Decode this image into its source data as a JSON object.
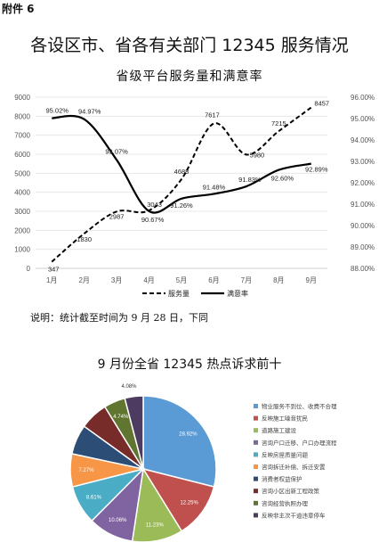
{
  "attachment_label": "附件 6",
  "main_title": "各设区市、省各有关部门 12345 服务情况",
  "note": "说明：统计截至时间为 9 月 28 日，下同",
  "chart_data": [
    {
      "type": "line",
      "title": "省级平台服务量和满意率",
      "categories": [
        "1月",
        "2月",
        "3月",
        "4月",
        "5月",
        "6月",
        "7月",
        "8月",
        "9月"
      ],
      "y_left": {
        "ticks": [
          "0",
          "1000",
          "2000",
          "3000",
          "4000",
          "5000",
          "6000",
          "7000",
          "8000",
          "9000"
        ],
        "lim": [
          0,
          9000
        ]
      },
      "y_right": {
        "ticks": [
          "88.00%",
          "89.00%",
          "90.00%",
          "91.00%",
          "92.00%",
          "93.00%",
          "94.00%",
          "95.00%",
          "96.00%"
        ],
        "lim": [
          88,
          96
        ]
      },
      "series": [
        {
          "name": "服务量",
          "axis": "left",
          "dashed": true,
          "color": "#000000",
          "values": [
            347,
            1830,
            2987,
            3043,
            4688,
            7617,
            5980,
            7215,
            8457
          ],
          "labels": [
            "347",
            "1830",
            "2987",
            "3043",
            "4688",
            "7617",
            "5980",
            "7215",
            "8457"
          ]
        },
        {
          "name": "满意率",
          "axis": "right",
          "dashed": false,
          "color": "#000000",
          "values": [
            95.02,
            94.97,
            93.07,
            90.67,
            91.26,
            91.48,
            91.83,
            92.6,
            92.89
          ],
          "labels": [
            "95.02%",
            "94.97%",
            "93.07%",
            "90.67%",
            "91.26%",
            "91.48%",
            "91.83%",
            "92.60%",
            "92.89%"
          ]
        }
      ],
      "legend_position": "bottom",
      "grid": true
    },
    {
      "type": "pie",
      "title": "9 月份全省 12345 热点诉求前十",
      "slices": [
        {
          "label": "物业服务不到位、收费不合理",
          "value": 28.92,
          "text": "28.92%",
          "color": "#5b9bd5"
        },
        {
          "label": "反映施工噪音扰民",
          "value": 12.25,
          "text": "12.25%",
          "color": "#c0504d"
        },
        {
          "label": "道路施工建设",
          "value": 11.23,
          "text": "11.23%",
          "color": "#9bbb59"
        },
        {
          "label": "咨询户口迁移、户口办理流程",
          "value": 10.06,
          "text": "10.06%",
          "color": "#8064a2"
        },
        {
          "label": "反映房屋质量问题",
          "value": 8.61,
          "text": "8.61%",
          "color": "#4bacc6"
        },
        {
          "label": "咨询拆迁补偿、拆迁安置",
          "value": 7.27,
          "text": "7.27%",
          "color": "#f79646"
        },
        {
          "label": "消费者权益保护",
          "value": 6.6,
          "text": "",
          "color": "#2c4d75"
        },
        {
          "label": "咨询小区出新工程政策",
          "value": 6.24,
          "text": "",
          "color": "#772c2a"
        },
        {
          "label": "咨询经营执照办理",
          "value": 4.74,
          "text": "4.74%",
          "color": "#5f7530"
        },
        {
          "label": "反映非主次干道违章停车",
          "value": 4.08,
          "text": "4.08%",
          "color": "#4d3b62"
        }
      ],
      "legend_position": "right"
    }
  ]
}
